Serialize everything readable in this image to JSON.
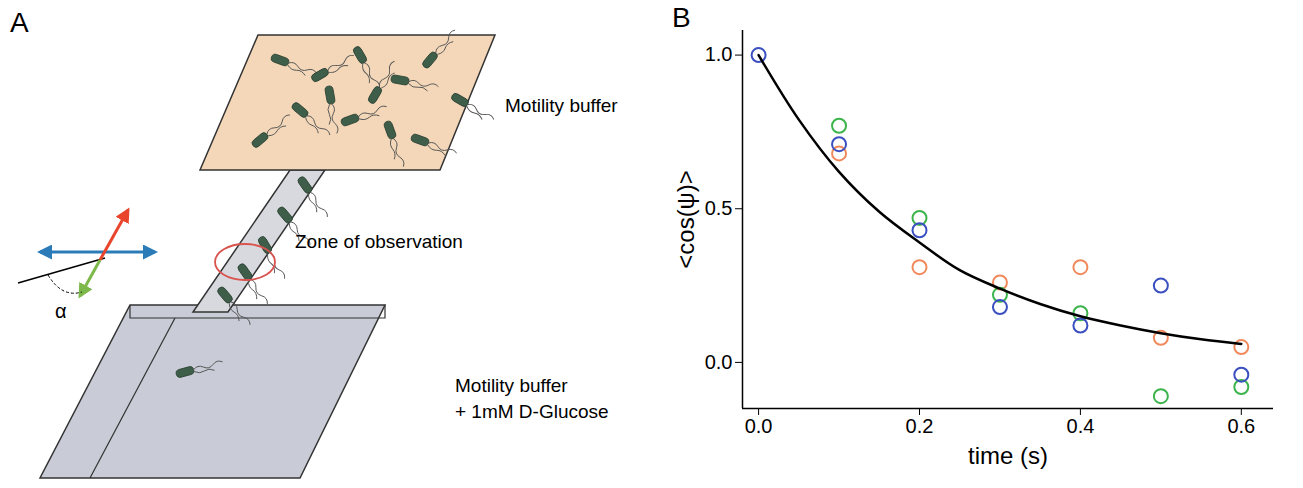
{
  "diagram": {
    "panel_label": "A",
    "labels": {
      "top": "Motility buffer",
      "zone": "Zone of observation",
      "bottom": [
        "Motility buffer",
        "+ 1mM D-Glucose"
      ],
      "angle": "α"
    }
  },
  "chart_data": {
    "panel_label": "B",
    "type": "scatter",
    "x_label": "time (s)",
    "y_label": "<cos(ψ)>",
    "xlim": [
      -0.02,
      0.64
    ],
    "ylim": [
      -0.15,
      1.08
    ],
    "xticks": [
      {
        "value": 0,
        "label": "0.0"
      },
      {
        "value": 0.2,
        "label": "0.2"
      },
      {
        "value": 0.4,
        "label": "0.4"
      },
      {
        "value": 0.6,
        "label": "0.6"
      }
    ],
    "yticks": [
      {
        "value": 0,
        "label": "0.0"
      },
      {
        "value": 0.5,
        "label": "0.5"
      },
      {
        "value": 1,
        "label": "1.0"
      }
    ],
    "series": [
      {
        "type": "scatter",
        "marker": "circle",
        "color": "#f08a5d",
        "x": [
          0.1,
          0.2,
          0.3,
          0.4,
          0.5,
          0.6
        ],
        "values": [
          0.68,
          0.31,
          0.26,
          0.31,
          0.08,
          0.05
        ]
      },
      {
        "type": "scatter",
        "marker": "circle",
        "color": "#3cb44b",
        "x": [
          0.1,
          0.2,
          0.3,
          0.4,
          0.5,
          0.6
        ],
        "values": [
          0.77,
          0.47,
          0.22,
          0.16,
          -0.11,
          -0.08
        ]
      },
      {
        "type": "scatter",
        "marker": "circle",
        "color": "#3a4fc0",
        "x": [
          0,
          0.1,
          0.2,
          0.3,
          0.4,
          0.5,
          0.6
        ],
        "values": [
          1.0,
          0.71,
          0.43,
          0.18,
          0.12,
          0.25,
          -0.04
        ]
      },
      {
        "type": "line",
        "line_style": "solid",
        "color": "#000000",
        "x": [
          0,
          0.05,
          0.1,
          0.15,
          0.2,
          0.25,
          0.3,
          0.35,
          0.4,
          0.45,
          0.5,
          0.55,
          0.6
        ],
        "values": [
          1.0,
          0.79,
          0.62,
          0.49,
          0.39,
          0.3,
          0.24,
          0.19,
          0.15,
          0.12,
          0.095,
          0.075,
          0.06
        ]
      }
    ]
  }
}
